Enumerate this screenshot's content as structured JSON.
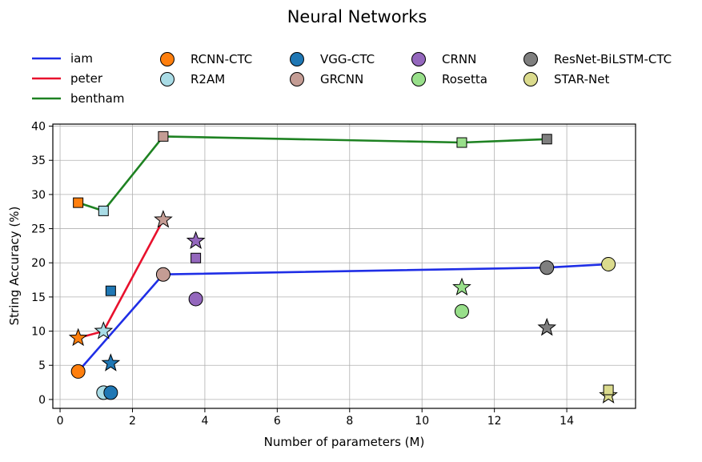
{
  "chart_data": {
    "type": "scatter",
    "title": "Neural Networks",
    "xlabel": "Number of parameters (M)",
    "ylabel": "String Accuracy (%)",
    "xlim": [
      -0.2,
      15.9
    ],
    "ylim": [
      -1.3,
      40.3
    ],
    "xticks": [
      0,
      2,
      4,
      6,
      8,
      10,
      12,
      14
    ],
    "yticks": [
      0,
      5,
      10,
      15,
      20,
      25,
      30,
      35,
      40
    ],
    "grid": true,
    "legend_position": "top",
    "lines": [
      {
        "name": "iam",
        "color": "#1f2ee6",
        "x": [
          0.5,
          2.85,
          13.45,
          15.15
        ],
        "y": [
          4.1,
          18.3,
          19.3,
          19.8
        ]
      },
      {
        "name": "peter",
        "color": "#e8112d",
        "x": [
          0.5,
          1.2,
          2.85
        ],
        "y": [
          9.0,
          10.0,
          26.3
        ]
      },
      {
        "name": "bentham",
        "color": "#1e8222",
        "x": [
          0.5,
          1.2,
          2.85,
          11.1,
          13.45
        ],
        "y": [
          28.8,
          27.6,
          38.5,
          37.6,
          38.1
        ]
      }
    ],
    "models": [
      {
        "name": "RCNN-CTC",
        "color": "#ff7f0e",
        "x": 0.5,
        "points": [
          {
            "marker": "circle",
            "y": 4.1
          },
          {
            "marker": "star",
            "y": 9.0
          },
          {
            "marker": "square",
            "y": 28.8
          }
        ]
      },
      {
        "name": "R2AM",
        "color": "#a9dce6",
        "x": 1.2,
        "points": [
          {
            "marker": "circle",
            "y": 1.0
          },
          {
            "marker": "star",
            "y": 10.0
          },
          {
            "marker": "square",
            "y": 27.6
          }
        ]
      },
      {
        "name": "VGG-CTC",
        "color": "#1f77b4",
        "x": 1.4,
        "points": [
          {
            "marker": "circle",
            "y": 1.0
          },
          {
            "marker": "star",
            "y": 5.3
          },
          {
            "marker": "square",
            "y": 15.9
          }
        ]
      },
      {
        "name": "GRCNN",
        "color": "#c49c94",
        "x": 2.85,
        "points": [
          {
            "marker": "circle",
            "y": 18.3
          },
          {
            "marker": "star",
            "y": 26.3
          },
          {
            "marker": "square",
            "y": 38.5
          }
        ]
      },
      {
        "name": "CRNN",
        "color": "#9467bd",
        "x": 3.75,
        "points": [
          {
            "marker": "circle",
            "y": 14.7
          },
          {
            "marker": "star",
            "y": 23.2
          },
          {
            "marker": "square",
            "y": 20.7
          }
        ]
      },
      {
        "name": "Rosetta",
        "color": "#98df8a",
        "x": 11.1,
        "points": [
          {
            "marker": "circle",
            "y": 12.9
          },
          {
            "marker": "star",
            "y": 16.4
          },
          {
            "marker": "square",
            "y": 37.6
          }
        ]
      },
      {
        "name": "ResNet-BiLSTM-CTC",
        "color": "#7f7f7f",
        "x": 13.45,
        "points": [
          {
            "marker": "circle",
            "y": 19.3
          },
          {
            "marker": "star",
            "y": 10.5
          },
          {
            "marker": "square",
            "y": 38.1
          }
        ]
      },
      {
        "name": "STAR-Net",
        "color": "#dbdb8d",
        "x": 15.15,
        "points": [
          {
            "marker": "circle",
            "y": 19.8
          },
          {
            "marker": "star",
            "y": 0.6
          },
          {
            "marker": "square",
            "y": 1.4
          }
        ]
      }
    ]
  }
}
